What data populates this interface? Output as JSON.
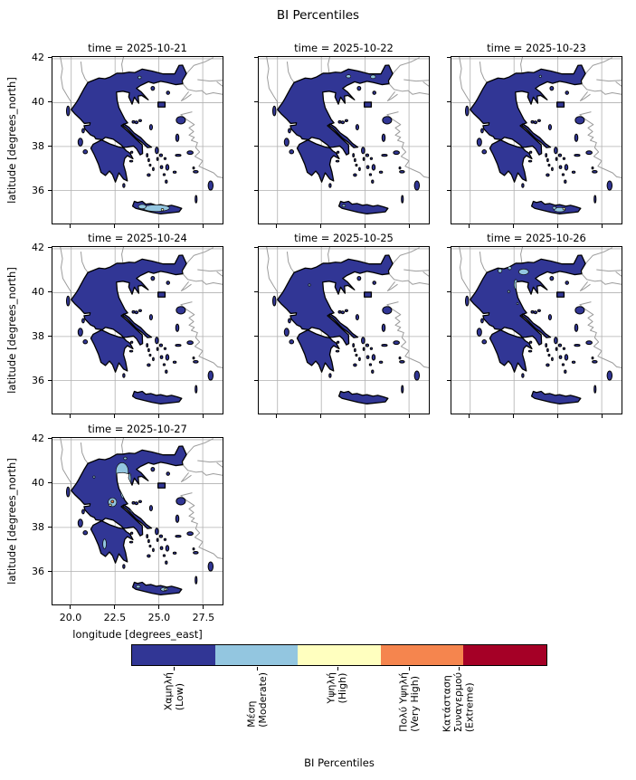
{
  "figure": {
    "suptitle": "BI Percentiles",
    "xlabel": "longitude [degrees_east]",
    "ylabel": "latitude [degrees_north]"
  },
  "chart_data": {
    "type": "map-facets",
    "suptitle": "BI Percentiles",
    "region": "Greece",
    "facet_variable": "time",
    "xlabel": "longitude [degrees_east]",
    "ylabel": "latitude [degrees_north]",
    "xlim": [
      18.93,
      28.63
    ],
    "ylim": [
      34.49,
      42.08
    ],
    "xtick_labels": [
      "20.0",
      "22.5",
      "25.0",
      "27.5"
    ],
    "xtick_values": [
      20.0,
      22.5,
      25.0,
      27.5
    ],
    "ytick_labels": [
      "42",
      "40",
      "38",
      "36"
    ],
    "ytick_values": [
      42,
      40,
      38,
      36
    ],
    "grid": true,
    "grid_color": "#b0b0b0",
    "coastline_color": "#000000",
    "neighbor_coast_color": "#9c9c9c",
    "level_colors": {
      "low": "#313695",
      "moderate": "#93c6e0",
      "high": "#ffffbf",
      "very_high": "#f5854e",
      "extreme": "#a50026"
    },
    "colorbar": {
      "label": "BI Percentiles",
      "orientation": "horizontal",
      "classes": [
        {
          "lines": [
            "Χαμηλή",
            "(Low)"
          ],
          "color": "#313695",
          "tick_frac": 0.104
        },
        {
          "lines": [
            "Μέση",
            "(Moderate)"
          ],
          "color": "#93c6e0",
          "tick_frac": 0.304
        },
        {
          "lines": [
            "Υψηλή",
            "(High)"
          ],
          "color": "#ffffbf",
          "tick_frac": 0.496
        },
        {
          "lines": [
            "Πολύ Υψηλή",
            "(Very High)"
          ],
          "color": "#f5854e",
          "tick_frac": 0.669
        },
        {
          "lines": [
            "Κατάσταση",
            "Συναγερμού",
            "(Extreme)"
          ],
          "color": "#a50026",
          "tick_frac": 0.787
        }
      ]
    },
    "anomaly_format": [
      "lon",
      "lat",
      "rx",
      "ry",
      "level"
    ],
    "panels": [
      {
        "title": "time = 2025-10-21",
        "date": "2025-10-21",
        "base_level": "low",
        "anomalies": [
          [
            23.9,
            41.15,
            0.09,
            0.06,
            "moderate"
          ],
          [
            24.85,
            35.19,
            0.75,
            0.15,
            "moderate"
          ],
          [
            24.05,
            35.26,
            0.22,
            0.1,
            "moderate"
          ],
          [
            25.2,
            35.12,
            0.07,
            0.05,
            "high"
          ]
        ]
      },
      {
        "title": "time = 2025-10-22",
        "date": "2025-10-22",
        "base_level": "low",
        "anomalies": [
          [
            24.05,
            41.2,
            0.13,
            0.07,
            "moderate"
          ],
          [
            25.45,
            41.18,
            0.14,
            0.08,
            "moderate"
          ],
          [
            23.78,
            35.3,
            0.1,
            0.05,
            "moderate"
          ]
        ]
      },
      {
        "title": "time = 2025-10-23",
        "date": "2025-10-23",
        "base_level": "low",
        "anomalies": [
          [
            24.0,
            41.2,
            0.06,
            0.05,
            "moderate"
          ],
          [
            25.1,
            35.12,
            0.32,
            0.1,
            "moderate"
          ],
          [
            24.8,
            35.2,
            0.1,
            0.06,
            "moderate"
          ],
          [
            25.35,
            35.16,
            0.07,
            0.05,
            "high"
          ]
        ]
      },
      {
        "title": "time = 2025-10-24",
        "date": "2025-10-24",
        "base_level": "low",
        "anomalies": []
      },
      {
        "title": "time = 2025-10-25",
        "date": "2025-10-25",
        "base_level": "low",
        "anomalies": [
          [
            21.82,
            40.35,
            0.06,
            0.05,
            "moderate"
          ]
        ]
      },
      {
        "title": "time = 2025-10-26",
        "date": "2025-10-26",
        "base_level": "low",
        "anomalies": [
          [
            21.7,
            41.0,
            0.11,
            0.09,
            "moderate"
          ],
          [
            22.25,
            41.12,
            0.1,
            0.07,
            "moderate"
          ],
          [
            23.05,
            40.95,
            0.28,
            0.13,
            "moderate"
          ],
          [
            22.6,
            40.38,
            0.1,
            0.22,
            "moderate"
          ],
          [
            22.2,
            40.05,
            0.06,
            0.05,
            "moderate"
          ],
          [
            22.7,
            39.5,
            0.05,
            0.04,
            "moderate"
          ]
        ]
      },
      {
        "title": "time = 2025-10-27",
        "date": "2025-10-27",
        "base_level": "low",
        "anomalies": [
          [
            22.9,
            40.55,
            0.35,
            0.4,
            "moderate"
          ],
          [
            23.08,
            41.15,
            0.09,
            0.06,
            "moderate"
          ],
          [
            22.95,
            39.8,
            0.16,
            0.45,
            "moderate"
          ],
          [
            22.35,
            39.15,
            0.24,
            0.2,
            "moderate"
          ],
          [
            23.33,
            40.2,
            0.08,
            0.28,
            "moderate"
          ],
          [
            22.35,
            39.18,
            0.08,
            0.06,
            "very_high"
          ],
          [
            22.22,
            39.02,
            0.08,
            0.05,
            "high"
          ],
          [
            23.55,
            38.78,
            0.18,
            0.1,
            "moderate"
          ],
          [
            23.58,
            38.72,
            0.07,
            0.05,
            "high"
          ],
          [
            21.3,
            40.3,
            0.06,
            0.05,
            "moderate"
          ],
          [
            21.9,
            37.25,
            0.1,
            0.22,
            "moderate"
          ],
          [
            23.82,
            35.3,
            0.12,
            0.06,
            "moderate"
          ],
          [
            25.3,
            35.18,
            0.2,
            0.08,
            "moderate"
          ],
          [
            25.35,
            35.17,
            0.06,
            0.04,
            "high"
          ]
        ]
      }
    ]
  }
}
